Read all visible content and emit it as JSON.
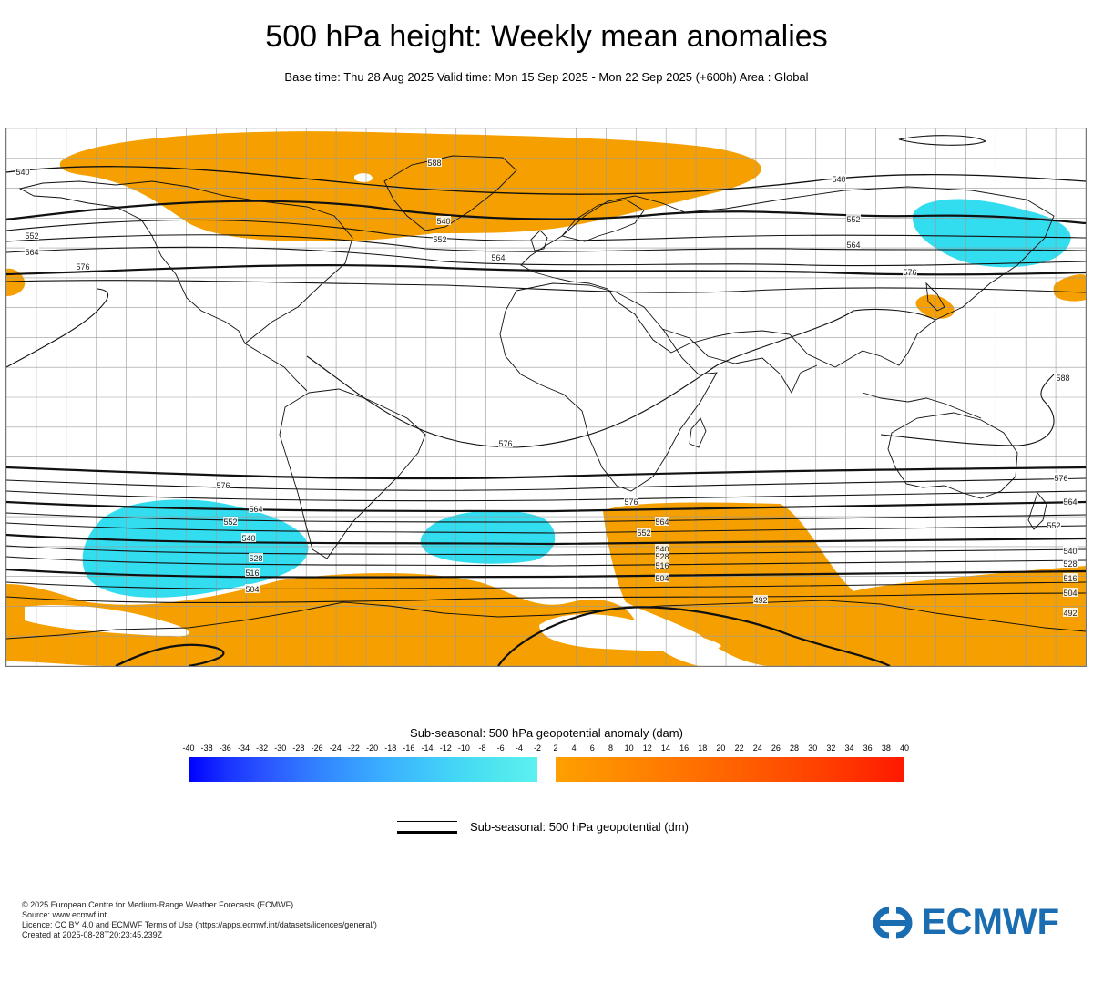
{
  "header": {
    "title": "500 hPa height: Weekly mean anomalies",
    "subtitle": "Base time: Thu 28 Aug 2025 Valid time: Mon 15 Sep 2025 - Mon 22 Sep 2025 (+600h) Area : Global"
  },
  "map": {
    "area": "Global",
    "colors": {
      "positive": "#f5a000",
      "negative": "#33ddf0",
      "contour": "#000000",
      "grid": "#9a9a9a",
      "coast": "#000000"
    },
    "contour_labels": [
      "540",
      "552",
      "564",
      "576",
      "588",
      "540",
      "552",
      "564",
      "576",
      "576",
      "564",
      "552",
      "540",
      "528",
      "516",
      "504",
      "576",
      "564",
      "552",
      "540",
      "528",
      "516",
      "504",
      "492",
      "576",
      "564",
      "552",
      "540",
      "528",
      "516",
      "504",
      "492",
      "540",
      "552",
      "564",
      "576",
      "588"
    ]
  },
  "legend": {
    "title": "Sub-seasonal: 500 hPa geopotential anomaly (dam)",
    "ticks": [
      "-40",
      "-38",
      "-36",
      "-34",
      "-32",
      "-30",
      "-28",
      "-26",
      "-24",
      "-22",
      "-20",
      "-18",
      "-16",
      "-14",
      "-12",
      "-10",
      "-8",
      "-6",
      "-4",
      "-2",
      "2",
      "4",
      "6",
      "8",
      "10",
      "12",
      "14",
      "16",
      "18",
      "20",
      "22",
      "24",
      "26",
      "28",
      "30",
      "32",
      "34",
      "36",
      "38",
      "40"
    ],
    "negative_colors": [
      "#0000ff",
      "#1a33ff",
      "#2a55ff",
      "#3077ff",
      "#3595ff",
      "#3aaeff",
      "#3fc4fb",
      "#44d8f4",
      "#4fe6ef",
      "#5cf0f0"
    ],
    "positive_colors": [
      "#ffa000",
      "#ff9300",
      "#ff8600",
      "#ff7800",
      "#ff6a00",
      "#ff5c00",
      "#ff4d00",
      "#ff3d00",
      "#ff2c00",
      "#ff1800"
    ],
    "contour_legend": "Sub-seasonal: 500 hPa geopotential (dm)"
  },
  "footer": {
    "lines": [
      "© 2025 European Centre for Medium-Range Weather Forecasts (ECMWF)",
      "Source: www.ecmwf.int",
      "Licence: CC BY 4.0 and ECMWF Terms of Use (https://apps.ecmwf.int/datasets/licences/general/)",
      "Created at 2025-08-28T20:23:45.239Z"
    ]
  },
  "logo": {
    "text": "ECMWF",
    "color": "#1a6db0"
  }
}
